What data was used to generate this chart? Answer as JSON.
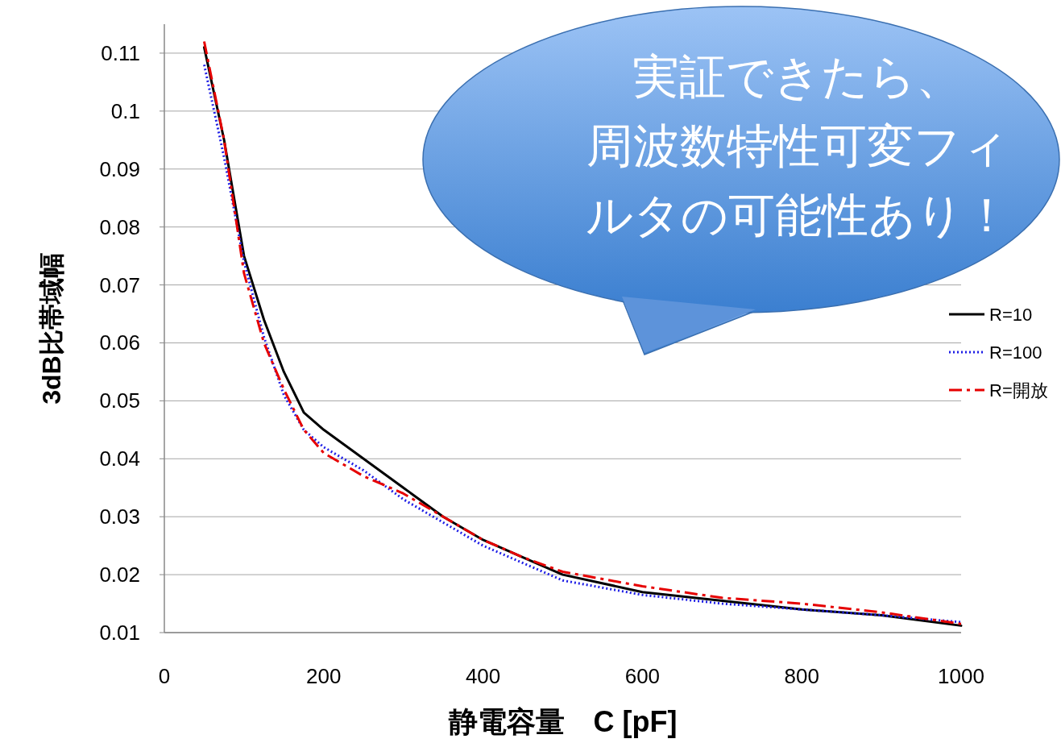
{
  "chart_data": {
    "type": "line",
    "xlabel": "静電容量　C [pF]",
    "ylabel": "3dB比帯域幅",
    "x": [
      50,
      75,
      100,
      125,
      150,
      175,
      200,
      250,
      300,
      350,
      400,
      450,
      500,
      600,
      700,
      800,
      900,
      1000
    ],
    "series": [
      {
        "name": "R=10",
        "color": "#000000",
        "line_style": "solid",
        "values": [
          0.111,
          0.095,
          0.075,
          0.064,
          0.055,
          0.048,
          0.045,
          0.04,
          0.035,
          0.03,
          0.026,
          0.023,
          0.02,
          0.017,
          0.0155,
          0.014,
          0.013,
          0.0112
        ]
      },
      {
        "name": "R=100",
        "color": "#1f1fe6",
        "line_style": "dotted",
        "values": [
          0.108,
          0.092,
          0.074,
          0.061,
          0.051,
          0.045,
          0.042,
          0.038,
          0.033,
          0.029,
          0.025,
          0.022,
          0.019,
          0.0165,
          0.015,
          0.014,
          0.013,
          0.0118
        ]
      },
      {
        "name": "R=開放",
        "color": "#e60000",
        "line_style": "dashed",
        "values": [
          0.112,
          0.095,
          0.072,
          0.06,
          0.052,
          0.045,
          0.041,
          0.037,
          0.034,
          0.03,
          0.026,
          0.023,
          0.0205,
          0.018,
          0.016,
          0.015,
          0.0135,
          0.0115
        ]
      }
    ],
    "xlim": [
      0,
      1000
    ],
    "xticks": [
      0,
      200,
      400,
      600,
      800,
      1000
    ],
    "ylim": [
      0.01,
      0.115
    ],
    "yticks": [
      0.01,
      0.02,
      0.03,
      0.04,
      0.05,
      0.06,
      0.07,
      0.08,
      0.09,
      0.1,
      0.11
    ],
    "grid": "y",
    "legend": "right",
    "annotations": [
      "実証できたら、周波数特性可変フィルタの可能性あり！"
    ]
  }
}
